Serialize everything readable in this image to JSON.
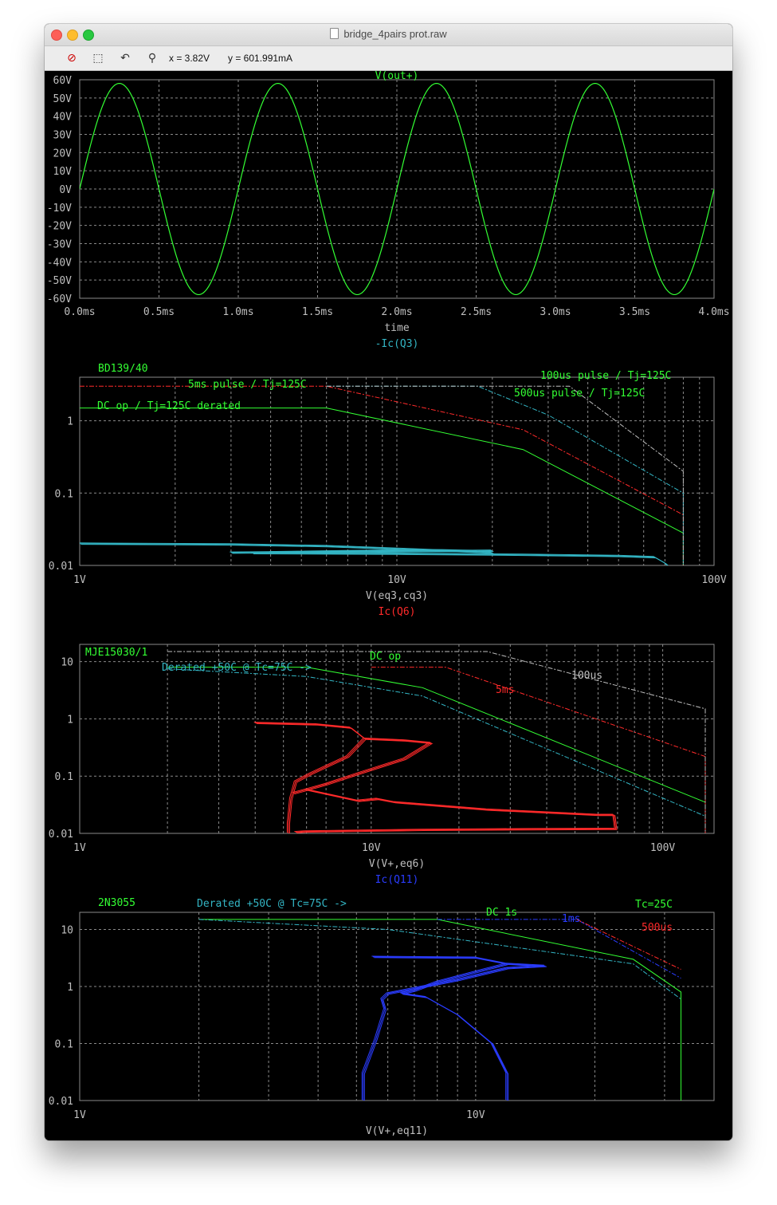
{
  "window": {
    "title": "bridge_4pairs prot.raw"
  },
  "toolbar": {
    "buttons": [
      "zoom-cancel-icon",
      "zoom-extents-icon",
      "undo-zoom-icon",
      "probe-cursor-icon"
    ],
    "cursor_x": "x = 3.82V",
    "cursor_y": "y = 601.991mA"
  },
  "colors": {
    "green": "#33ff33",
    "cyan": "#33b5c4",
    "red": "#ff2a2a",
    "blue": "#2a3cff",
    "white": "#bfbfbf",
    "grid": "#8a8a8a"
  },
  "chart_data": [
    {
      "type": "line",
      "title": "V(out+)",
      "xlabel": "time",
      "x_ticks": [
        "0.0ms",
        "0.5ms",
        "1.0ms",
        "1.5ms",
        "2.0ms",
        "2.5ms",
        "3.0ms",
        "3.5ms",
        "4.0ms"
      ],
      "y_ticks": [
        "60V",
        "50V",
        "40V",
        "30V",
        "20V",
        "10V",
        "0V",
        "-10V",
        "-20V",
        "-30V",
        "-40V",
        "-50V",
        "-60V"
      ],
      "xlim": [
        0,
        4
      ],
      "ylim": [
        -60,
        60
      ],
      "grid": true,
      "series": [
        {
          "name": "V(out+)",
          "color": "#33ff33",
          "function": "sine",
          "amplitude": 58,
          "frequency_khz": 1
        }
      ]
    },
    {
      "type": "line",
      "title": "-Ic(Q3)",
      "xlabel": "V(eq3,cq3)",
      "x_scale": "log",
      "y_scale": "log",
      "xlim": [
        1,
        100
      ],
      "ylim": [
        0.01,
        4
      ],
      "x_ticks": [
        "1V",
        "10V",
        "100V"
      ],
      "y_ticks": [
        "1",
        "0.1",
        "0.01"
      ],
      "grid": true,
      "annotations": [
        {
          "text": "BD139/40",
          "color": "#33ff33"
        },
        {
          "text": "5ms pulse / Tj=125C",
          "color": "#33ff33"
        },
        {
          "text": "DC op / Tj=125C derated",
          "color": "#33ff33"
        },
        {
          "text": "100us pulse / Tj=125C",
          "color": "#33ff33"
        },
        {
          "text": "500us pulse / Tj=125C",
          "color": "#33ff33"
        }
      ],
      "soa_lines": [
        {
          "color": "#33ff33",
          "dash": false,
          "points": [
            [
              1,
              1.5
            ],
            [
              6,
              1.5
            ],
            [
              25,
              0.4
            ],
            [
              80,
              0.028
            ],
            [
              80,
              0.01
            ]
          ]
        },
        {
          "color": "#ff2a2a",
          "dash": true,
          "points": [
            [
              1,
              3
            ],
            [
              6,
              3
            ],
            [
              25,
              0.75
            ],
            [
              80,
              0.05
            ],
            [
              80,
              0.01
            ]
          ]
        },
        {
          "color": "#33b5c4",
          "dash": true,
          "points": [
            [
              6,
              3
            ],
            [
              18,
              3
            ],
            [
              30,
              1.2
            ],
            [
              80,
              0.1
            ],
            [
              80,
              0.01
            ]
          ]
        },
        {
          "color": "#bfbfbf",
          "dash": true,
          "points": [
            [
              6,
              3
            ],
            [
              35,
              3
            ],
            [
              80,
              0.2
            ],
            [
              80,
              0.01
            ]
          ]
        }
      ],
      "traces": [
        {
          "color": "#33b5c4",
          "width": 2,
          "points": [
            [
              1,
              0.02
            ],
            [
              3,
              0.0195
            ],
            [
              6,
              0.0185
            ],
            [
              12,
              0.0165
            ],
            [
              20,
              0.015
            ]
          ]
        },
        {
          "color": "#33b5c4",
          "width": 2,
          "points": [
            [
              3,
              0.015
            ],
            [
              8,
              0.0155
            ],
            [
              15,
              0.0158
            ],
            [
              20,
              0.016
            ]
          ]
        },
        {
          "color": "#33b5c4",
          "width": 2,
          "points": [
            [
              3.5,
              0.0148
            ],
            [
              10,
              0.0145
            ],
            [
              25,
              0.014
            ],
            [
              50,
              0.0135
            ],
            [
              65,
              0.013
            ],
            [
              70,
              0.0108
            ],
            [
              72,
              0.0097
            ]
          ]
        },
        {
          "color": "#33b5c4",
          "width": 2,
          "points": [
            [
              4,
              0.0152
            ],
            [
              9,
              0.016
            ],
            [
              14,
              0.0162
            ],
            [
              18,
              0.0158
            ]
          ]
        }
      ]
    },
    {
      "type": "line",
      "title": "Ic(Q6)",
      "xlabel": "V(V+,eq6)",
      "x_scale": "log",
      "y_scale": "log",
      "xlim": [
        1,
        150
      ],
      "ylim": [
        0.01,
        20
      ],
      "x_ticks": [
        "1V",
        "10V",
        "100V"
      ],
      "y_ticks": [
        "10",
        "1",
        "0.1",
        "0.01"
      ],
      "grid": true,
      "annotations": [
        {
          "text": "MJE15030/1",
          "color": "#33ff33"
        },
        {
          "text": "Derated +50C @ Tc=75C ->",
          "color": "#33b5c4"
        },
        {
          "text": "DC op",
          "color": "#33ff33"
        },
        {
          "text": "5ms",
          "color": "#ff2a2a"
        },
        {
          "text": "100us",
          "color": "#bfbfbf"
        }
      ],
      "soa_lines": [
        {
          "color": "#33ff33",
          "dash": false,
          "points": [
            [
              2,
              8
            ],
            [
              6,
              8
            ],
            [
              15,
              3.5
            ],
            [
              140,
              0.035
            ],
            [
              140,
              0.01
            ]
          ]
        },
        {
          "color": "#33b5c4",
          "dash": true,
          "points": [
            [
              2,
              7.5
            ],
            [
              6,
              5.5
            ],
            [
              15,
              2.5
            ],
            [
              140,
              0.02
            ],
            [
              140,
              0.01
            ]
          ]
        },
        {
          "color": "#ff2a2a",
          "dash": true,
          "points": [
            [
              10,
              8
            ],
            [
              18,
              8
            ],
            [
              140,
              0.22
            ],
            [
              140,
              0.01
            ]
          ]
        },
        {
          "color": "#bfbfbf",
          "dash": true,
          "points": [
            [
              2,
              15
            ],
            [
              25,
              15
            ],
            [
              140,
              1.5
            ],
            [
              140,
              0.01
            ]
          ]
        }
      ],
      "traces": [
        {
          "color": "#ff2a2a",
          "width": 2,
          "points": [
            [
              4,
              0.85
            ],
            [
              6.5,
              0.8
            ],
            [
              8.5,
              0.7
            ],
            [
              9.5,
              0.45
            ],
            [
              8.3,
              0.22
            ],
            [
              6.2,
              0.11
            ],
            [
              5.5,
              0.08
            ],
            [
              5.3,
              0.04
            ],
            [
              5.2,
              0.015
            ],
            [
              5.2,
              0.01
            ]
          ]
        },
        {
          "color": "#ff2a2a",
          "width": 2,
          "points": [
            [
              9.5,
              0.45
            ],
            [
              13,
              0.42
            ],
            [
              16,
              0.38
            ],
            [
              13,
              0.2
            ],
            [
              9,
              0.11
            ],
            [
              7,
              0.072
            ],
            [
              6,
              0.058
            ],
            [
              5.4,
              0.05
            ]
          ]
        },
        {
          "color": "#ff2a2a",
          "width": 2,
          "points": [
            [
              6,
              0.058
            ],
            [
              9,
              0.037
            ],
            [
              10.5,
              0.04
            ],
            [
              12,
              0.035
            ],
            [
              25,
              0.026
            ],
            [
              60,
              0.021
            ],
            [
              68,
              0.021
            ],
            [
              69,
              0.012
            ],
            [
              35,
              0.0118
            ],
            [
              15,
              0.0115
            ],
            [
              10,
              0.0112
            ],
            [
              6,
              0.0108
            ],
            [
              5.5,
              0.0105
            ]
          ]
        }
      ]
    },
    {
      "type": "line",
      "title": "Ic(Q11)",
      "xlabel": "V(V+,eq11)",
      "x_scale": "log",
      "y_scale": "log",
      "xlim": [
        1,
        40
      ],
      "ylim": [
        0.01,
        20
      ],
      "x_ticks": [
        "1V",
        "10V"
      ],
      "y_ticks": [
        "10",
        "1",
        "0.1",
        "0.01"
      ],
      "grid": true,
      "annotations": [
        {
          "text": "2N3055",
          "color": "#33ff33"
        },
        {
          "text": "Derated +50C @ Tc=75C ->",
          "color": "#33b5c4"
        },
        {
          "text": "DC 1s",
          "color": "#33ff33"
        },
        {
          "text": "1ms",
          "color": "#2a3cff"
        },
        {
          "text": "Tc=25C",
          "color": "#33ff33"
        },
        {
          "text": "500us",
          "color": "#ff2a2a"
        }
      ],
      "soa_lines": [
        {
          "color": "#33ff33",
          "dash": false,
          "points": [
            [
              2,
              15
            ],
            [
              8,
              15
            ],
            [
              25,
              3
            ],
            [
              33,
              0.8
            ],
            [
              33,
              0.01
            ]
          ]
        },
        {
          "color": "#33b5c4",
          "dash": true,
          "points": [
            [
              2,
              15
            ],
            [
              6,
              10
            ],
            [
              25,
              2.5
            ],
            [
              33,
              0.6
            ]
          ]
        },
        {
          "color": "#2a3cff",
          "dash": true,
          "points": [
            [
              8,
              15
            ],
            [
              18,
              15
            ],
            [
              33,
              1.4
            ]
          ]
        },
        {
          "color": "#ff2a2a",
          "dash": true,
          "points": [
            [
              18,
              15
            ],
            [
              33,
              2
            ]
          ]
        }
      ],
      "traces": [
        {
          "color": "#2a3cff",
          "width": 2,
          "points": [
            [
              5.5,
              3.3
            ],
            [
              10,
              3.2
            ],
            [
              12,
              2.5
            ],
            [
              10,
              1.8
            ],
            [
              8,
              1.2
            ],
            [
              7,
              0.85
            ],
            [
              6.5,
              0.75
            ],
            [
              7.5,
              0.65
            ],
            [
              9,
              0.32
            ],
            [
              11,
              0.1
            ],
            [
              12,
              0.03
            ],
            [
              12,
              0.01
            ]
          ]
        },
        {
          "color": "#2a3cff",
          "width": 2,
          "points": [
            [
              12,
              2.5
            ],
            [
              15,
              2.3
            ],
            [
              12,
              2.1
            ],
            [
              9,
              1.3
            ],
            [
              6,
              0.75
            ],
            [
              5.8,
              0.6
            ],
            [
              5.9,
              0.4
            ],
            [
              5.6,
              0.12
            ],
            [
              5.2,
              0.03
            ],
            [
              5.2,
              0.01
            ]
          ]
        }
      ]
    }
  ]
}
